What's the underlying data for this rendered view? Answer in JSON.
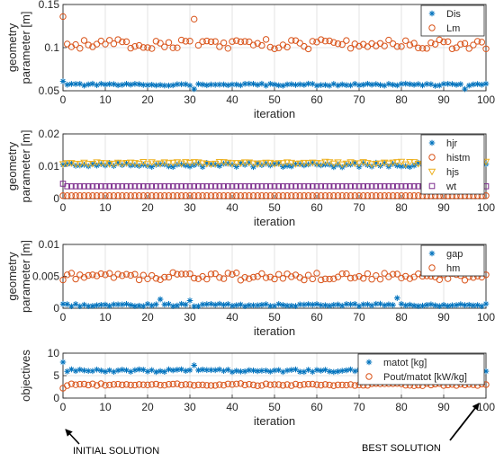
{
  "chart_data": [
    {
      "type": "scatter",
      "ylabel_lines": [
        "geometry",
        "parameter [m]"
      ],
      "xlabel": "iteration",
      "xlim": [
        0,
        100
      ],
      "ylim": [
        0.05,
        0.15
      ],
      "xticks": [
        0,
        10,
        20,
        30,
        40,
        50,
        60,
        70,
        80,
        90,
        100
      ],
      "yticks": [
        0.05,
        0.1,
        0.15
      ],
      "ytick_labels": [
        "0.05",
        "0.1",
        "0.15"
      ],
      "grid": true,
      "legend_position": "top-right",
      "series": [
        {
          "name": "Dis",
          "marker": "star",
          "color": "#0072BD",
          "base": 0.057,
          "amp": 0.0012,
          "outliers": [
            [
              0,
              0.061
            ],
            [
              31,
              0.052
            ],
            [
              95,
              0.052
            ]
          ]
        },
        {
          "name": "Lm",
          "marker": "circle",
          "color": "#D95319",
          "base": 0.104,
          "amp": 0.0055,
          "outliers": [
            [
              0,
              0.136
            ],
            [
              31,
              0.133
            ]
          ]
        }
      ]
    },
    {
      "type": "scatter",
      "ylabel_lines": [
        "geometry",
        "parameter [m]"
      ],
      "xlabel": "iteration",
      "xlim": [
        0,
        100
      ],
      "ylim": [
        0,
        0.02
      ],
      "xticks": [
        0,
        10,
        20,
        30,
        40,
        50,
        60,
        70,
        80,
        90,
        100
      ],
      "yticks": [
        0,
        0.01,
        0.02
      ],
      "ytick_labels": [
        "0",
        "0.01",
        "0.02"
      ],
      "grid": true,
      "legend_position": "top-right",
      "series": [
        {
          "name": "hjr",
          "marker": "star",
          "color": "#0072BD",
          "base": 0.0104,
          "amp": 0.0007,
          "outliers": []
        },
        {
          "name": "histm",
          "marker": "circle",
          "color": "#D95319",
          "base": 0.0009,
          "amp": 0.0,
          "outliers": []
        },
        {
          "name": "hjs",
          "marker": "triangle",
          "color": "#EDB120",
          "base": 0.011,
          "amp": 0.0004,
          "outliers": []
        },
        {
          "name": "wt",
          "marker": "square",
          "color": "#7E2F8E",
          "base": 0.0038,
          "amp": 0.0,
          "outliers": [
            [
              0,
              0.0046
            ]
          ]
        }
      ]
    },
    {
      "type": "scatter",
      "ylabel_lines": [
        "geometry",
        "parameter [m]"
      ],
      "xlabel": "iteration",
      "xlim": [
        0,
        100
      ],
      "ylim": [
        0,
        0.01
      ],
      "xticks": [
        0,
        10,
        20,
        30,
        40,
        50,
        60,
        70,
        80,
        90,
        100
      ],
      "yticks": [
        0,
        0.005,
        0.01
      ],
      "ytick_labels": [
        "0",
        "0.005",
        "0.01"
      ],
      "grid": true,
      "legend_position": "top-right",
      "series": [
        {
          "name": "gap",
          "marker": "star",
          "color": "#0072BD",
          "base": 0.0005,
          "amp": 0.0002,
          "outliers": [
            [
              23,
              0.0014
            ],
            [
              30,
              0.0012
            ],
            [
              79,
              0.0016
            ]
          ]
        },
        {
          "name": "hm",
          "marker": "circle",
          "color": "#D95319",
          "base": 0.005,
          "amp": 0.0006,
          "outliers": []
        }
      ]
    },
    {
      "type": "scatter",
      "ylabel_lines": [
        "objectives"
      ],
      "xlabel": "iteration",
      "xlim": [
        0,
        100
      ],
      "ylim": [
        0,
        10
      ],
      "xticks": [
        0,
        10,
        20,
        30,
        40,
        50,
        60,
        70,
        80,
        90,
        100
      ],
      "yticks": [
        0,
        5,
        10
      ],
      "ytick_labels": [
        "0",
        "5",
        "10"
      ],
      "grid": true,
      "legend_position": "top-right",
      "series": [
        {
          "name": "matot [kg]",
          "marker": "star",
          "color": "#0072BD",
          "base": 6.1,
          "amp": 0.3,
          "outliers": [
            [
              0,
              8.0
            ],
            [
              31,
              7.3
            ],
            [
              94,
              7.2
            ]
          ]
        },
        {
          "name": "Pout/matot [kW/kg]",
          "marker": "circle",
          "color": "#D95319",
          "base": 3.0,
          "amp": 0.25,
          "outliers": [
            [
              0,
              2.2
            ]
          ]
        }
      ]
    }
  ],
  "annotations": {
    "initial_solution": "INITIAL SOLUTION",
    "best_solution": "BEST SOLUTION"
  }
}
